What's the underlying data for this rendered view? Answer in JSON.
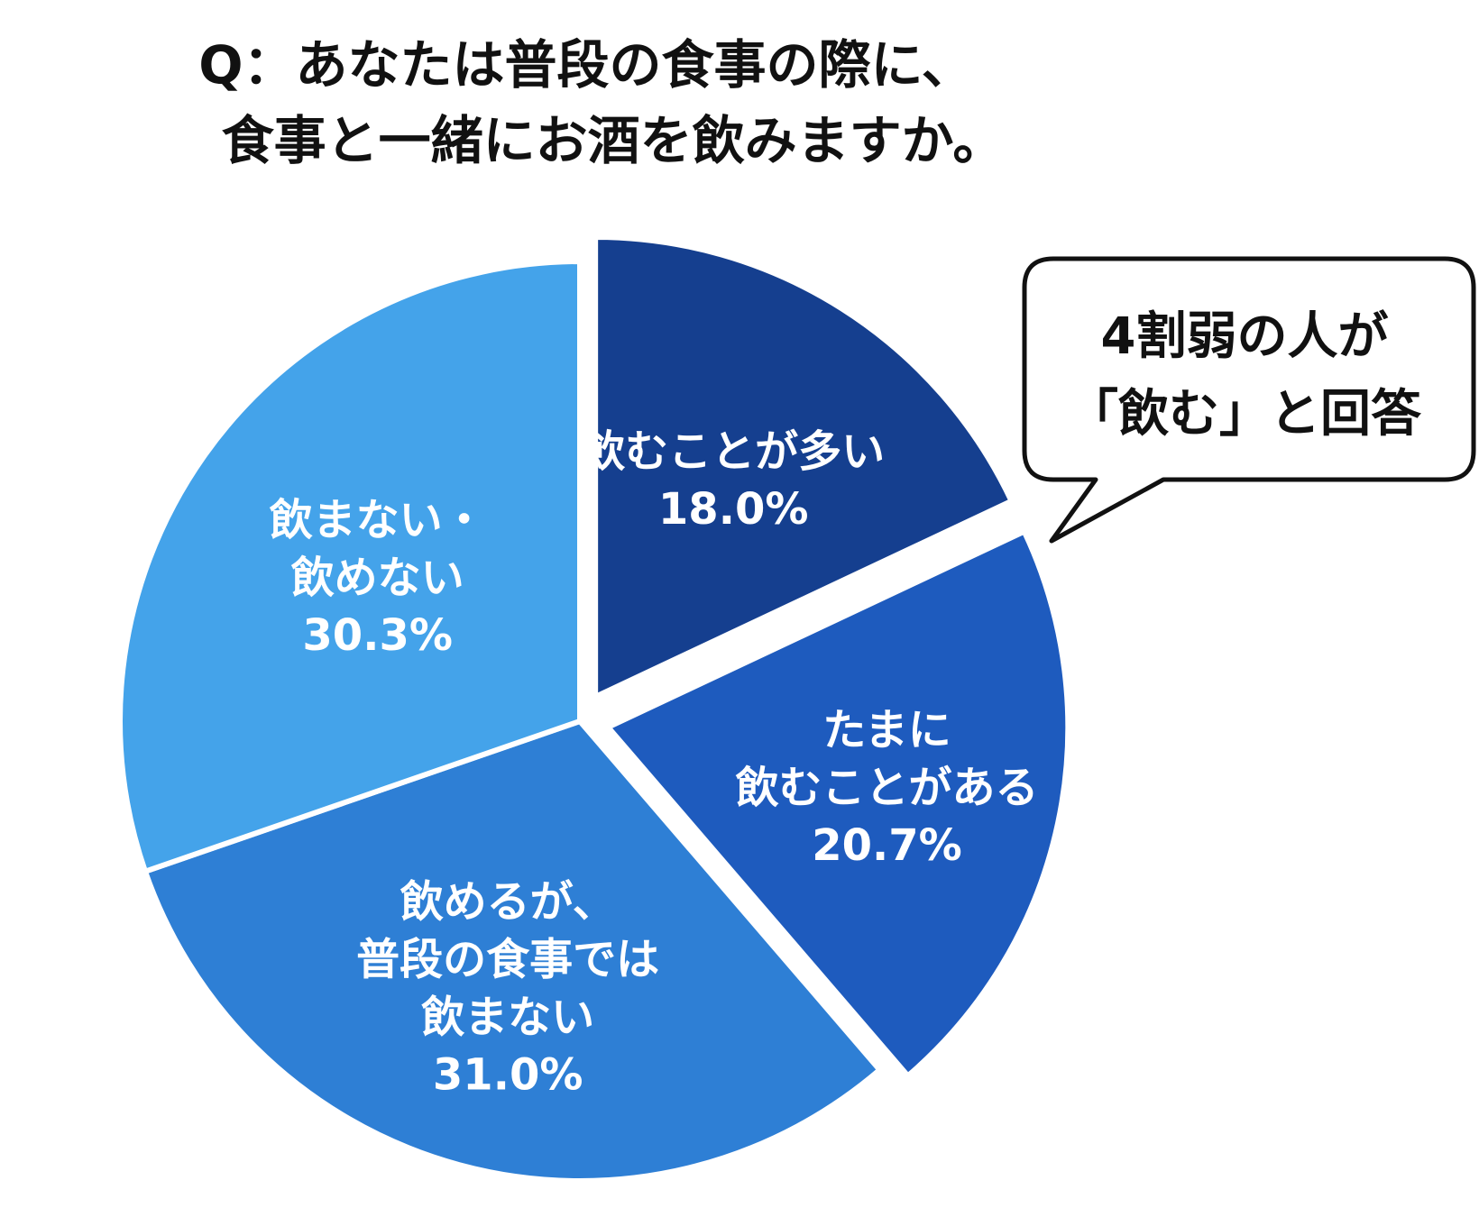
{
  "chart_data": {
    "type": "pie",
    "title": [
      "Q：あなたは普段の食事の際に、",
      "食事と一緒にお酒を飲みますか。"
    ],
    "slices": [
      {
        "label": [
          "飲むことが多い"
        ],
        "value": 18.0,
        "value_label": "18.0%",
        "color": "#153f8f",
        "exploded": true
      },
      {
        "label": [
          "たまに",
          "飲むことがある"
        ],
        "value": 20.7,
        "value_label": "20.7%",
        "color": "#1e5bbe",
        "exploded": true
      },
      {
        "label": [
          "飲めるが、",
          "普段の食事では",
          "飲まない"
        ],
        "value": 31.0,
        "value_label": "31.0%",
        "color": "#2e7fd5",
        "exploded": false
      },
      {
        "label": [
          "飲まない・",
          "飲めない"
        ],
        "value": 30.3,
        "value_label": "30.3%",
        "color": "#44a3ea",
        "exploded": false
      }
    ],
    "start": "12 o'clock",
    "direction": "clockwise",
    "annotation": [
      "4割弱の人が",
      "「飲む」と回答"
    ]
  }
}
